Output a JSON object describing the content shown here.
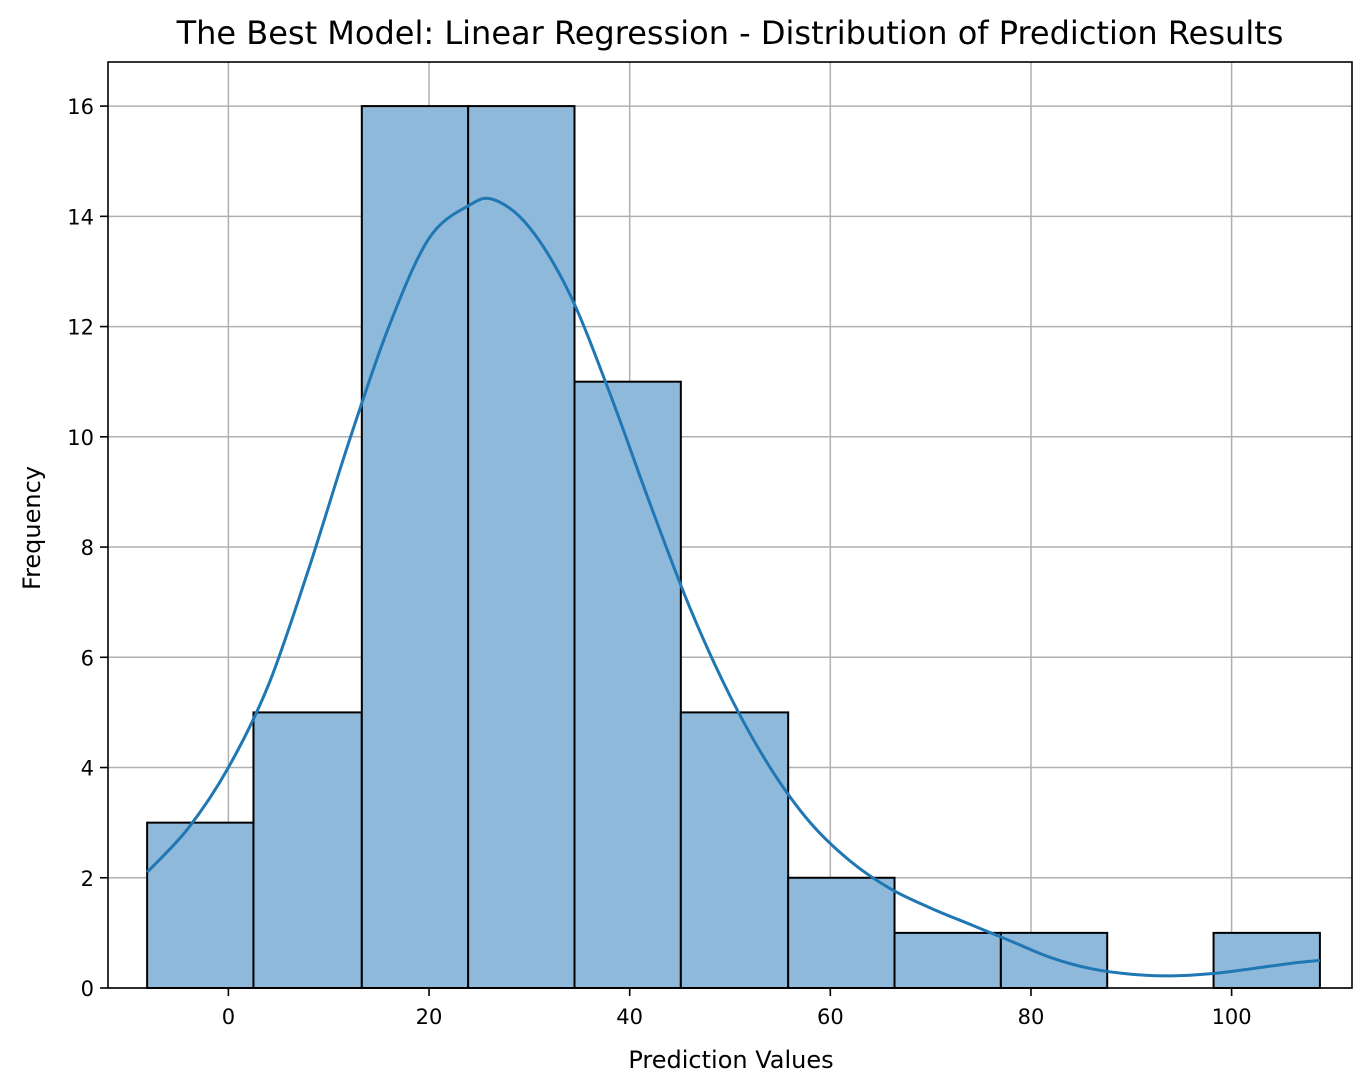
{
  "chart_data": {
    "type": "bar",
    "title": "The Best Model: Linear Regression - Distribution of Prediction Results",
    "xlabel": "Prediction Values",
    "ylabel": "Frequency",
    "xlim": [
      -12,
      112
    ],
    "ylim": [
      0,
      16.8
    ],
    "grid": true,
    "bins": [
      {
        "x0": -8.1,
        "x1": 2.5,
        "count": 3
      },
      {
        "x0": 2.5,
        "x1": 13.3,
        "count": 5
      },
      {
        "x0": 13.3,
        "x1": 23.9,
        "count": 16
      },
      {
        "x0": 23.9,
        "x1": 34.5,
        "count": 16
      },
      {
        "x0": 34.5,
        "x1": 45.1,
        "count": 11
      },
      {
        "x0": 45.1,
        "x1": 55.8,
        "count": 5
      },
      {
        "x0": 55.8,
        "x1": 66.4,
        "count": 2
      },
      {
        "x0": 66.4,
        "x1": 77.0,
        "count": 1
      },
      {
        "x0": 77.0,
        "x1": 87.6,
        "count": 1
      },
      {
        "x0": 87.6,
        "x1": 98.2,
        "count": 0
      },
      {
        "x0": 98.2,
        "x1": 108.8,
        "count": 1
      }
    ],
    "kde": {
      "x": [
        -8.1,
        -4,
        0,
        4,
        8,
        12,
        16,
        20,
        24,
        26.5,
        30,
        34,
        38,
        42,
        46,
        50,
        54,
        58,
        62,
        66,
        70,
        74,
        78,
        82,
        86,
        90,
        94,
        98,
        102,
        106,
        108.8
      ],
      "y": [
        2.1,
        2.9,
        4.0,
        5.5,
        7.6,
        9.9,
        12.0,
        13.6,
        14.2,
        14.3,
        13.8,
        12.6,
        10.8,
        8.8,
        6.9,
        5.3,
        4.0,
        3.0,
        2.3,
        1.8,
        1.45,
        1.15,
        0.85,
        0.55,
        0.35,
        0.25,
        0.22,
        0.26,
        0.35,
        0.45,
        0.5
      ]
    },
    "xticks": [
      0,
      20,
      40,
      60,
      80,
      100
    ],
    "yticks": [
      0,
      2,
      4,
      6,
      8,
      10,
      12,
      14,
      16
    ]
  }
}
